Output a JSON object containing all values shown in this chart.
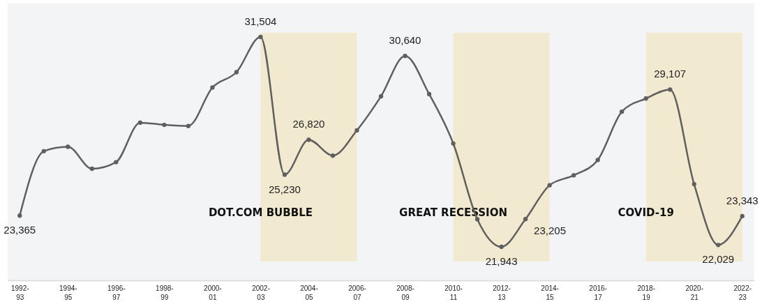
{
  "chart_data": {
    "type": "line",
    "categories": [
      "1992-93",
      null,
      "1994-95",
      null,
      "1996-97",
      null,
      "1998-99",
      null,
      "2000-01",
      null,
      "2002-03",
      null,
      "2004-05",
      null,
      "2006-07",
      null,
      "2008-09",
      null,
      "2010-11",
      null,
      "2012-13",
      null,
      "2014-15",
      null,
      "2016-17",
      null,
      "2018-19",
      null,
      "2020-21",
      null,
      "2022-23"
    ],
    "series": [
      {
        "color": "#5f5f5f",
        "values": [
          23365,
          26300,
          26500,
          25500,
          25800,
          27600,
          27500,
          27450,
          29200,
          29900,
          31504,
          25230,
          26820,
          26100,
          27250,
          28800,
          30640,
          28900,
          26650,
          23200,
          21943,
          23205,
          24750,
          25200,
          25900,
          28100,
          28700,
          29107,
          24800,
          22029,
          23343
        ],
        "value_labels": [
          "23,365",
          null,
          null,
          null,
          null,
          null,
          null,
          null,
          null,
          null,
          "31,504",
          "25,230",
          "26,820",
          null,
          null,
          null,
          "30,640",
          null,
          null,
          null,
          "21,943",
          "23,205",
          null,
          null,
          null,
          null,
          null,
          "29,107",
          null,
          "22,029",
          "23,343"
        ]
      }
    ],
    "marker": "circle",
    "bands": [
      {
        "axis": "x",
        "from": "2002-03",
        "to": "2006-07",
        "label": "DOT.COM BUBBLE",
        "color": "#f2e6c4"
      },
      {
        "axis": "x",
        "from": "2010-11",
        "to": "2014-15",
        "label": "GREAT RECESSION",
        "color": "#f2e6c4"
      },
      {
        "axis": "x",
        "from": "2018-19",
        "to": "2022-23",
        "label": "COVID-19",
        "color": "#f2e6c4"
      }
    ]
  }
}
